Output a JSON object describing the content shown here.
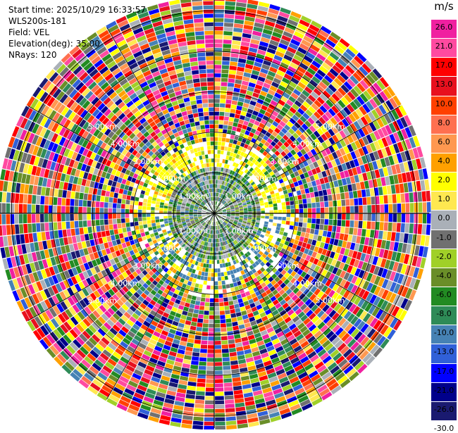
{
  "header": {
    "start_time": "Start time: 2025/10/29 16:33:57",
    "instrument": "WLS200s-181",
    "field": "Field: VEL",
    "elevation": "Elevation(deg): 35.00",
    "nrays": "NRays: 120"
  },
  "chart_data": {
    "type": "heatmap",
    "projection": "ppi-polar",
    "n_rays": 120,
    "range_rings_km": [
      1,
      2,
      3,
      4,
      5
    ],
    "ring_labels": [
      "1.00km",
      "2.00km",
      "3.00km",
      "4.00km",
      "5.00km"
    ],
    "max_range_km": 5.3,
    "unit": "m/s",
    "colorbar": {
      "ticks": [
        "26.0",
        "21.0",
        "17.0",
        "13.0",
        "10.0",
        "8.0",
        "6.0",
        "4.0",
        "2.0",
        "1.0",
        "0.0",
        "-1.0",
        "-2.0",
        "-4.0",
        "-6.0",
        "-8.0",
        "-10.0",
        "-13.0",
        "-17.0",
        "-21.0",
        "-26.0",
        "-30.0"
      ],
      "colors": [
        "#f020a0",
        "#ff4aa0",
        "#ff0000",
        "#e8101e",
        "#ff4000",
        "#ff7050",
        "#ff9850",
        "#ffa000",
        "#ffff00",
        "#ffe850",
        "#aab0b8",
        "#707070",
        "#a0d028",
        "#6a8e28",
        "#228b22",
        "#2e8b57",
        "#4682b4",
        "#3060d8",
        "#0000ff",
        "#00008b",
        "#1a1a70"
      ]
    },
    "field": "VEL",
    "elevation_deg": 35.0
  }
}
